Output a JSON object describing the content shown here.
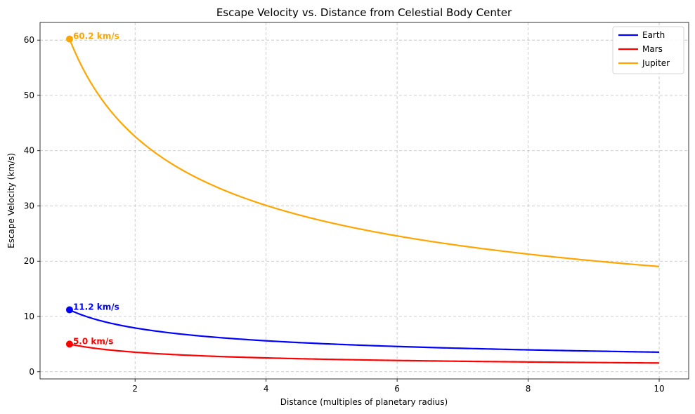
{
  "chart_data": {
    "type": "line",
    "title": "Escape Velocity vs. Distance from Celestial Body Center",
    "xlabel": "Distance (multiples of planetary radius)",
    "ylabel": "Escape Velocity (km/s)",
    "xlim": [
      0.55,
      10.45
    ],
    "ylim": [
      -1.3,
      63.2
    ],
    "xticks": [
      2,
      4,
      6,
      8,
      10
    ],
    "yticks": [
      0,
      10,
      20,
      30,
      40,
      50,
      60
    ],
    "x_range": [
      1,
      10
    ],
    "grid": true,
    "legend_position": "top-right",
    "series": [
      {
        "name": "Earth",
        "color": "#0000ff",
        "surface_velocity": 11.2,
        "annotation": "11.2 km/s"
      },
      {
        "name": "Mars",
        "color": "#ff0000",
        "surface_velocity": 5.0,
        "annotation": "5.0 km/s"
      },
      {
        "name": "Jupiter",
        "color": "#ffa500",
        "surface_velocity": 60.2,
        "annotation": "60.2 km/s"
      }
    ]
  }
}
